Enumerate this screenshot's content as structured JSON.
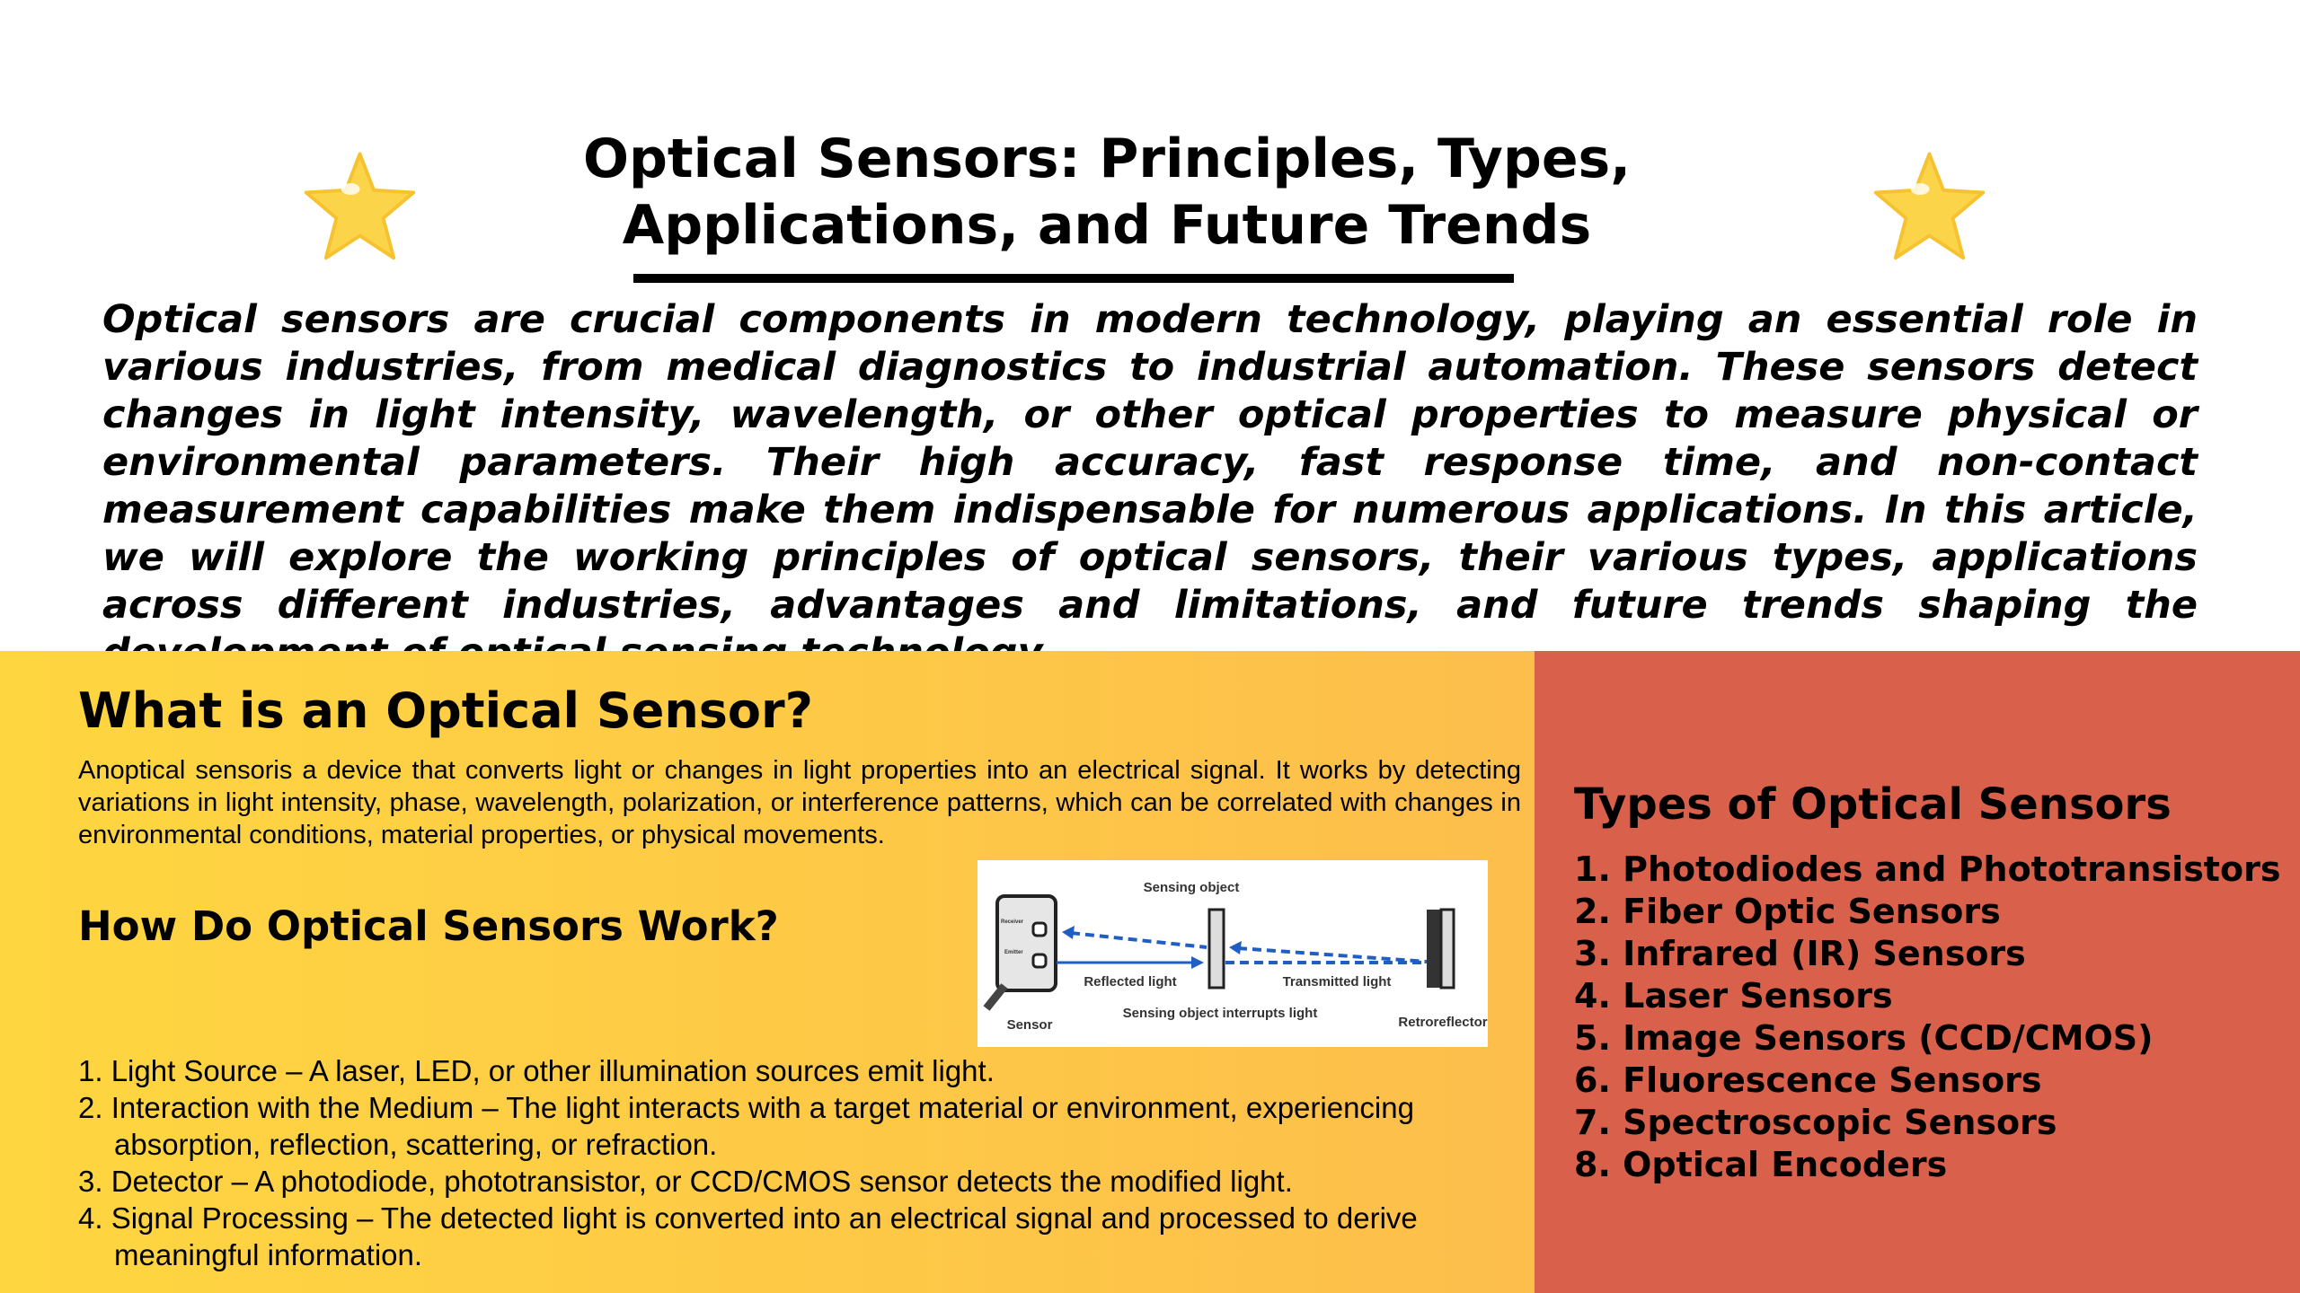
{
  "title_line1": "Optical Sensors: Principles, Types,",
  "title_line2": "Applications, and Future Trends",
  "intro": "Optical sensors are crucial components in modern technology, playing an essential role in various industries, from medical diagnostics to industrial automation. These sensors detect changes in light intensity, wavelength, or other optical properties to measure physical or environmental parameters. Their high accuracy, fast response time, and non-contact measurement capabilities make them indispensable for numerous applications. In this article, we will explore the working principles of optical sensors, their various types, applications across different industries, advantages and limitations, and future trends shaping the development of optical sensing technology.",
  "what": {
    "heading": "What is an Optical Sensor?",
    "body": "Anoptical sensoris a device that converts light or changes in light properties into an electrical signal. It works by detecting variations in light intensity, phase, wavelength, polarization, or interference patterns, which can be correlated with changes in environmental conditions, material properties, or physical movements."
  },
  "how": {
    "heading": "How Do Optical Sensors Work?",
    "steps": [
      "1. Light Source – A laser, LED, or other illumination sources emit light.",
      "2. Interaction with the Medium – The light interacts with a target material or environment, experiencing absorption, reflection, scattering, or refraction.",
      "3. Detector – A photodiode, phototransistor, or CCD/CMOS sensor detects the modified light.",
      "4. Signal Processing – The detected light is converted into an electrical signal and processed to derive meaningful information."
    ]
  },
  "diagram": {
    "sensing_object": "Sensing object",
    "receiver": "Receiver",
    "emitter": "Emitter",
    "reflected": "Reflected light",
    "transmitted": "Transmitted light",
    "interrupts": "Sensing object interrupts light",
    "sensor": "Sensor",
    "retroreflector": "Retroreflector"
  },
  "types": {
    "heading": "Types of Optical Sensors",
    "items": [
      "1. Photodiodes and Phototransistors",
      "2. Fiber Optic Sensors",
      "3. Infrared (IR) Sensors",
      "4. Laser Sensors",
      "5. Image Sensors (CCD/CMOS)",
      "6. Fluorescence Sensors",
      "7. Spectroscopic Sensors",
      "8. Optical Encoders"
    ]
  },
  "colors": {
    "orange_start": "#fed640",
    "orange_end": "#fdbe4c",
    "red": "#d9614b",
    "arrow_blue": "#1f5fc4"
  }
}
